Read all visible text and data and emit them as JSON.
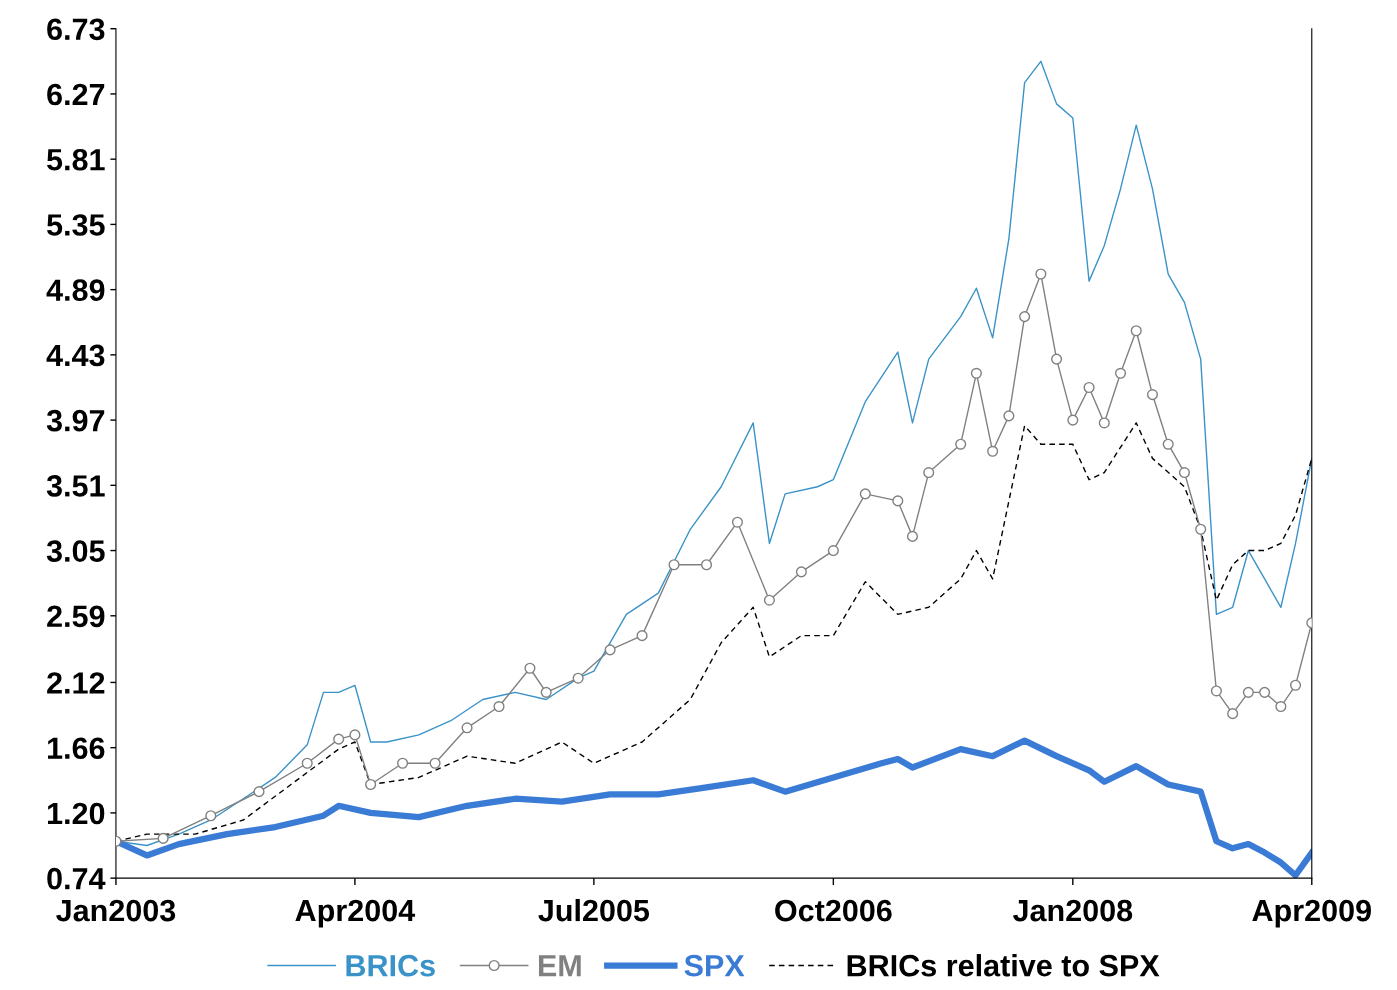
{
  "chart_data": {
    "type": "line",
    "xlim": [
      "2003-01",
      "2009-04"
    ],
    "xticks": [
      {
        "value": "2003-01",
        "label": "Jan2003"
      },
      {
        "value": "2004-04",
        "label": "Apr2004"
      },
      {
        "value": "2005-07",
        "label": "Jul2005"
      },
      {
        "value": "2006-10",
        "label": "Oct2006"
      },
      {
        "value": "2008-01",
        "label": "Jan2008"
      },
      {
        "value": "2009-04",
        "label": "Apr2009"
      }
    ],
    "ylim": [
      0.74,
      6.73
    ],
    "yticks": [
      0.74,
      {
        "value": 1.2,
        "label": "1.20"
      },
      1.66,
      2.12,
      2.59,
      3.05,
      3.51,
      3.97,
      4.43,
      4.89,
      5.35,
      5.81,
      6.27,
      6.73
    ],
    "grid": false,
    "legend": "bottom",
    "series": [
      {
        "name": "BRICs",
        "color": "#3a93c8",
        "marker": "none",
        "line_style": "solid",
        "x": [
          "2003-01",
          "2003-03",
          "2003-05",
          "2003-07",
          "2003-09",
          "2003-11",
          "2004-01",
          "2004-02",
          "2004-03",
          "2004-04",
          "2004-05",
          "2004-06",
          "2004-08",
          "2004-10",
          "2004-12",
          "2005-02",
          "2005-04",
          "2005-06",
          "2005-07",
          "2005-09",
          "2005-11",
          "2006-01",
          "2006-03",
          "2006-05",
          "2006-06",
          "2006-07",
          "2006-09",
          "2006-10",
          "2006-12",
          "2007-02",
          "2007-03",
          "2007-04",
          "2007-06",
          "2007-07",
          "2007-08",
          "2007-09",
          "2007-10",
          "2007-11",
          "2007-12",
          "2008-01",
          "2008-02",
          "2008-03",
          "2008-04",
          "2008-05",
          "2008-06",
          "2008-07",
          "2008-08",
          "2008-09",
          "2008-10",
          "2008-11",
          "2008-12",
          "2009-01",
          "2009-02",
          "2009-03",
          "2009-04"
        ],
        "values": [
          1.0,
          0.97,
          1.05,
          1.15,
          1.3,
          1.45,
          1.68,
          2.05,
          2.05,
          2.1,
          1.7,
          1.7,
          1.75,
          1.85,
          2.0,
          2.05,
          2.0,
          2.15,
          2.2,
          2.6,
          2.75,
          3.2,
          3.5,
          3.95,
          3.1,
          3.45,
          3.5,
          3.55,
          4.1,
          4.45,
          3.95,
          4.4,
          4.7,
          4.9,
          4.55,
          5.25,
          6.35,
          6.5,
          6.2,
          6.1,
          4.95,
          5.2,
          5.6,
          6.05,
          5.6,
          5.0,
          4.8,
          4.4,
          2.6,
          2.65,
          3.05,
          2.85,
          2.65,
          3.1,
          3.7
        ]
      },
      {
        "name": "EM",
        "color": "#808080",
        "marker": "circle",
        "line_style": "solid",
        "x": [
          "2003-01",
          "2003-04",
          "2003-07",
          "2003-10",
          "2004-01",
          "2004-03",
          "2004-04",
          "2004-05",
          "2004-07",
          "2004-09",
          "2004-11",
          "2005-01",
          "2005-03",
          "2005-04",
          "2005-06",
          "2005-08",
          "2005-10",
          "2005-12",
          "2006-02",
          "2006-04",
          "2006-06",
          "2006-08",
          "2006-10",
          "2006-12",
          "2007-02",
          "2007-03",
          "2007-04",
          "2007-06",
          "2007-07",
          "2007-08",
          "2007-09",
          "2007-10",
          "2007-11",
          "2007-12",
          "2008-01",
          "2008-02",
          "2008-03",
          "2008-04",
          "2008-05",
          "2008-06",
          "2008-07",
          "2008-08",
          "2008-09",
          "2008-10",
          "2008-11",
          "2008-12",
          "2009-01",
          "2009-02",
          "2009-03",
          "2009-04"
        ],
        "values": [
          1.0,
          1.02,
          1.18,
          1.35,
          1.55,
          1.72,
          1.75,
          1.4,
          1.55,
          1.55,
          1.8,
          1.95,
          2.22,
          2.05,
          2.15,
          2.35,
          2.45,
          2.95,
          2.95,
          3.25,
          2.7,
          2.9,
          3.05,
          3.45,
          3.4,
          3.15,
          3.6,
          3.8,
          4.3,
          3.75,
          4.0,
          4.7,
          5.0,
          4.4,
          3.97,
          4.2,
          3.95,
          4.3,
          4.6,
          4.15,
          3.8,
          3.6,
          3.2,
          2.06,
          1.9,
          2.05,
          2.05,
          1.95,
          2.1,
          2.54
        ]
      },
      {
        "name": "SPX",
        "color": "#3a7bd5",
        "marker": "none",
        "line_style": "solid",
        "x": [
          "2003-01",
          "2003-03",
          "2003-05",
          "2003-08",
          "2003-11",
          "2004-02",
          "2004-03",
          "2004-05",
          "2004-08",
          "2004-11",
          "2005-02",
          "2005-05",
          "2005-08",
          "2005-11",
          "2006-02",
          "2006-05",
          "2006-07",
          "2006-10",
          "2007-01",
          "2007-02",
          "2007-03",
          "2007-06",
          "2007-08",
          "2007-10",
          "2007-12",
          "2008-02",
          "2008-03",
          "2008-05",
          "2008-07",
          "2008-09",
          "2008-10",
          "2008-11",
          "2008-12",
          "2009-01",
          "2009-02",
          "2009-03",
          "2009-04"
        ],
        "values": [
          1.0,
          0.9,
          0.98,
          1.05,
          1.1,
          1.18,
          1.25,
          1.2,
          1.17,
          1.25,
          1.3,
          1.28,
          1.33,
          1.33,
          1.38,
          1.43,
          1.35,
          1.45,
          1.55,
          1.58,
          1.52,
          1.65,
          1.6,
          1.71,
          1.6,
          1.5,
          1.42,
          1.53,
          1.4,
          1.35,
          1.0,
          0.95,
          0.98,
          0.92,
          0.85,
          0.76,
          0.92
        ]
      },
      {
        "name": "BRICs relative to SPX",
        "color": "#000000",
        "marker": "none",
        "line_style": "dashed",
        "x": [
          "2003-01",
          "2003-03",
          "2003-06",
          "2003-09",
          "2003-12",
          "2004-03",
          "2004-04",
          "2004-05",
          "2004-08",
          "2004-11",
          "2005-02",
          "2005-05",
          "2005-07",
          "2005-10",
          "2006-01",
          "2006-03",
          "2006-05",
          "2006-06",
          "2006-08",
          "2006-10",
          "2006-12",
          "2007-02",
          "2007-04",
          "2007-06",
          "2007-07",
          "2007-08",
          "2007-09",
          "2007-10",
          "2007-11",
          "2008-01",
          "2008-02",
          "2008-03",
          "2008-05",
          "2008-06",
          "2008-08",
          "2008-09",
          "2008-10",
          "2008-11",
          "2008-12",
          "2009-01",
          "2009-02",
          "2009-03",
          "2009-04"
        ],
        "values": [
          1.0,
          1.05,
          1.05,
          1.15,
          1.4,
          1.65,
          1.7,
          1.4,
          1.45,
          1.6,
          1.55,
          1.7,
          1.55,
          1.7,
          2.0,
          2.4,
          2.65,
          2.3,
          2.45,
          2.45,
          2.83,
          2.6,
          2.65,
          2.85,
          3.05,
          2.85,
          3.4,
          3.93,
          3.8,
          3.8,
          3.55,
          3.6,
          3.95,
          3.7,
          3.5,
          3.2,
          2.7,
          2.95,
          3.05,
          3.05,
          3.1,
          3.3,
          3.7
        ]
      }
    ]
  }
}
